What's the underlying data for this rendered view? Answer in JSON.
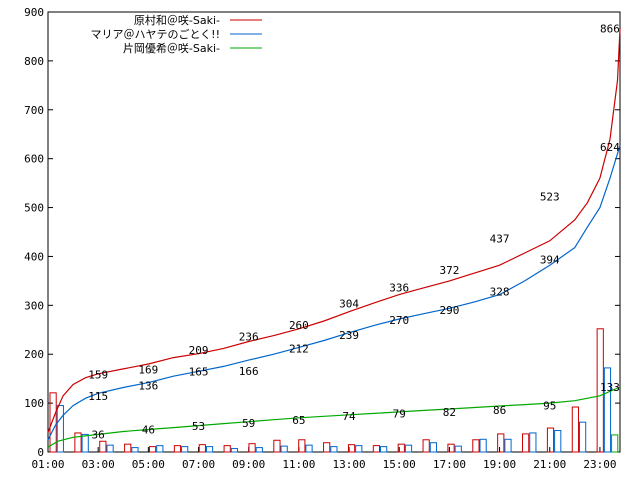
{
  "chart_data": {
    "type": "line",
    "x_ticks": [
      "01:00",
      "03:00",
      "05:00",
      "07:00",
      "09:00",
      "11:00",
      "13:00",
      "15:00",
      "17:00",
      "19:00",
      "21:00",
      "23:00"
    ],
    "y_ticks": [
      0,
      100,
      200,
      300,
      400,
      500,
      600,
      700,
      800,
      900
    ],
    "ylim": [
      0,
      900
    ],
    "xlim": [
      0,
      22.8
    ],
    "xlabel": "",
    "ylabel": "",
    "title": "",
    "legend_position": "top-left",
    "series": [
      {
        "name": "原村和＠咲-Saki-",
        "color": "#cc0000",
        "cumulative": [
          [
            0,
            40
          ],
          [
            0.3,
            80
          ],
          [
            0.6,
            115
          ],
          [
            1,
            138
          ],
          [
            1.5,
            152
          ],
          [
            2,
            160
          ],
          [
            3,
            170
          ],
          [
            4,
            180
          ],
          [
            5,
            193
          ],
          [
            6,
            201
          ],
          [
            7,
            212
          ],
          [
            8,
            226
          ],
          [
            9,
            238
          ],
          [
            10,
            252
          ],
          [
            11,
            268
          ],
          [
            12,
            287
          ],
          [
            13,
            305
          ],
          [
            14,
            322
          ],
          [
            15,
            336
          ],
          [
            16,
            350
          ],
          [
            17,
            366
          ],
          [
            18,
            382
          ],
          [
            19,
            407
          ],
          [
            20,
            432
          ],
          [
            21,
            475
          ],
          [
            21.5,
            510
          ],
          [
            22,
            560
          ],
          [
            22.4,
            640
          ],
          [
            22.7,
            760
          ],
          [
            22.8,
            866
          ]
        ],
        "labels": [
          {
            "x": 2,
            "y": 159,
            "t": "159"
          },
          {
            "x": 4,
            "y": 169,
            "t": "169"
          },
          {
            "x": 6,
            "y": 209,
            "t": "209"
          },
          {
            "x": 8,
            "y": 236,
            "t": "236"
          },
          {
            "x": 10,
            "y": 260,
            "t": "260"
          },
          {
            "x": 12,
            "y": 304,
            "t": "304"
          },
          {
            "x": 14,
            "y": 336,
            "t": "336"
          },
          {
            "x": 16,
            "y": 372,
            "t": "372"
          },
          {
            "x": 18,
            "y": 437,
            "t": "437"
          },
          {
            "x": 20,
            "y": 523,
            "t": "523"
          },
          {
            "x": 22.4,
            "y": 866,
            "t": "866"
          }
        ],
        "bars": [
          121,
          39,
          22,
          16,
          11,
          13,
          15,
          13,
          17,
          24,
          25,
          19,
          15,
          13,
          16,
          25,
          16,
          25,
          37,
          37,
          49,
          92,
          252
        ]
      },
      {
        "name": "マリア＠ハヤテのごとく!!",
        "color": "#0066cc",
        "cumulative": [
          [
            0,
            25
          ],
          [
            0.3,
            55
          ],
          [
            0.6,
            75
          ],
          [
            1,
            95
          ],
          [
            1.5,
            110
          ],
          [
            2,
            120
          ],
          [
            3,
            132
          ],
          [
            4,
            142
          ],
          [
            5,
            155
          ],
          [
            6,
            165
          ],
          [
            7,
            175
          ],
          [
            8,
            188
          ],
          [
            9,
            200
          ],
          [
            10,
            214
          ],
          [
            11,
            228
          ],
          [
            12,
            244
          ],
          [
            13,
            259
          ],
          [
            14,
            272
          ],
          [
            15,
            283
          ],
          [
            16,
            294
          ],
          [
            17,
            307
          ],
          [
            18,
            322
          ],
          [
            19,
            350
          ],
          [
            20,
            382
          ],
          [
            21,
            418
          ],
          [
            21.5,
            460
          ],
          [
            22,
            500
          ],
          [
            22.4,
            560
          ],
          [
            22.8,
            627
          ]
        ],
        "labels": [
          {
            "x": 2,
            "y": 115,
            "t": "115"
          },
          {
            "x": 4,
            "y": 136,
            "t": "136"
          },
          {
            "x": 6,
            "y": 165,
            "t": "165"
          },
          {
            "x": 8,
            "y": 166,
            "t": "166"
          },
          {
            "x": 10,
            "y": 212,
            "t": "212"
          },
          {
            "x": 12,
            "y": 239,
            "t": "239"
          },
          {
            "x": 14,
            "y": 270,
            "t": "270"
          },
          {
            "x": 16,
            "y": 290,
            "t": "290"
          },
          {
            "x": 18,
            "y": 328,
            "t": "328"
          },
          {
            "x": 20,
            "y": 394,
            "t": "394"
          },
          {
            "x": 22.4,
            "y": 624,
            "t": "624"
          }
        ],
        "bars": [
          95,
          36,
          14,
          9,
          13,
          11,
          11,
          7,
          9,
          12,
          14,
          11,
          13,
          11,
          14,
          19,
          12,
          26,
          26,
          39,
          44,
          61,
          172
        ]
      },
      {
        "name": "片岡優希＠咲-Saki-",
        "color": "#00aa00",
        "cumulative": [
          [
            0,
            10
          ],
          [
            0.4,
            22
          ],
          [
            1,
            30
          ],
          [
            2,
            36
          ],
          [
            3,
            42
          ],
          [
            4,
            46
          ],
          [
            5,
            50
          ],
          [
            6,
            54
          ],
          [
            7,
            58
          ],
          [
            8,
            62
          ],
          [
            9,
            66
          ],
          [
            10,
            70
          ],
          [
            11,
            73
          ],
          [
            12,
            76
          ],
          [
            13,
            79
          ],
          [
            14,
            82
          ],
          [
            15,
            85
          ],
          [
            16,
            88
          ],
          [
            17,
            91
          ],
          [
            18,
            94
          ],
          [
            19,
            97
          ],
          [
            20,
            100
          ],
          [
            21,
            105
          ],
          [
            22,
            115
          ],
          [
            22.8,
            133
          ]
        ],
        "labels": [
          {
            "x": 2,
            "y": 36,
            "t": "36"
          },
          {
            "x": 4,
            "y": 46,
            "t": "46"
          },
          {
            "x": 6,
            "y": 53,
            "t": "53"
          },
          {
            "x": 8,
            "y": 59,
            "t": "59"
          },
          {
            "x": 10,
            "y": 65,
            "t": "65"
          },
          {
            "x": 12,
            "y": 74,
            "t": "74"
          },
          {
            "x": 14,
            "y": 79,
            "t": "79"
          },
          {
            "x": 16,
            "y": 82,
            "t": "82"
          },
          {
            "x": 18,
            "y": 86,
            "t": "86"
          },
          {
            "x": 20,
            "y": 95,
            "t": "95"
          },
          {
            "x": 22.4,
            "y": 133,
            "t": "133"
          }
        ],
        "bars": [
          0,
          0,
          0,
          0,
          0,
          0,
          0,
          0,
          0,
          0,
          0,
          0,
          0,
          0,
          0,
          0,
          0,
          0,
          0,
          0,
          0,
          0,
          35
        ]
      }
    ]
  }
}
